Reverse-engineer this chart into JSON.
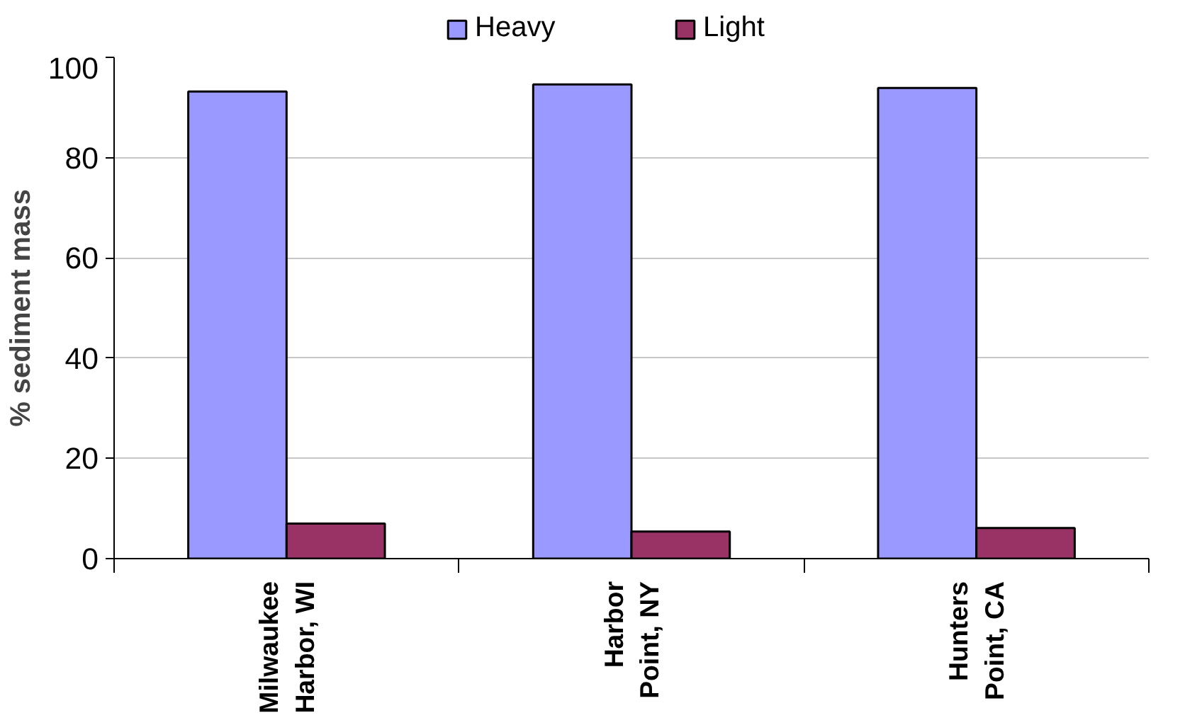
{
  "chart_data": {
    "type": "bar",
    "ylabel": "% sediment mass",
    "categories": [
      "Milwaukee\nHarbor, WI",
      "Harbor\nPoint, NY",
      "Hunters\nPoint, CA"
    ],
    "series": [
      {
        "name": "Heavy",
        "color": "#9999ff",
        "values": [
          93.2,
          94.6,
          93.9
        ]
      },
      {
        "name": "Light",
        "color": "#993366",
        "values": [
          7.0,
          5.4,
          6.1
        ]
      }
    ],
    "ylim": [
      0,
      100
    ],
    "yticks": [
      0,
      20,
      40,
      60,
      80,
      100
    ],
    "grid": "y",
    "legend": "top"
  }
}
